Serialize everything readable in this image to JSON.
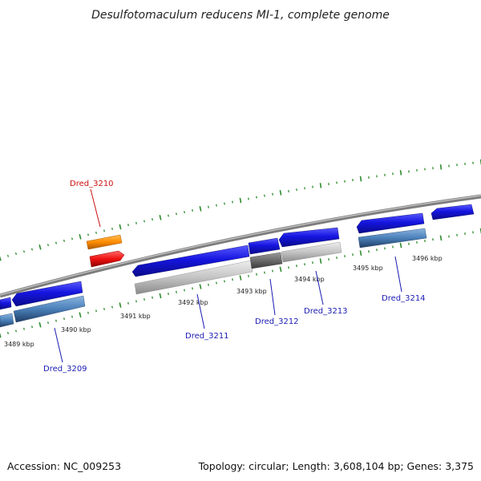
{
  "title": "Desulfotomaculum reducens MI-1, complete genome",
  "footer": {
    "accession": "Accession: NC_009253",
    "stats": "Topology: circular; Length: 3,608,104 bp; Genes: 3,375"
  },
  "colors": {
    "backbone": "#8a8a8a",
    "tick": "#2e8b2e",
    "gene_blue": "#1515e0",
    "gene_light": "#c4c4c4",
    "gene_dark": "#6a6a6a",
    "gene_steel": "#4a7fb8",
    "gene_orange": "#ff8c00",
    "gene_red": "#ee1111",
    "label_blue": "#1a1ab3",
    "label_red": "#cc1111"
  },
  "kbp_labels": [
    "3489 kbp",
    "3490 kbp",
    "3491 kbp",
    "3492 kbp",
    "3493 kbp",
    "3494 kbp",
    "3495 kbp",
    "3496 kbp"
  ],
  "gene_labels": [
    {
      "name": "Dred_3210",
      "color": "red"
    },
    {
      "name": "Dred_3209",
      "color": "blue"
    },
    {
      "name": "Dred_3211",
      "color": "blue"
    },
    {
      "name": "Dred_3212",
      "color": "blue"
    },
    {
      "name": "Dred_3213",
      "color": "blue"
    },
    {
      "name": "Dred_3214",
      "color": "blue"
    }
  ]
}
